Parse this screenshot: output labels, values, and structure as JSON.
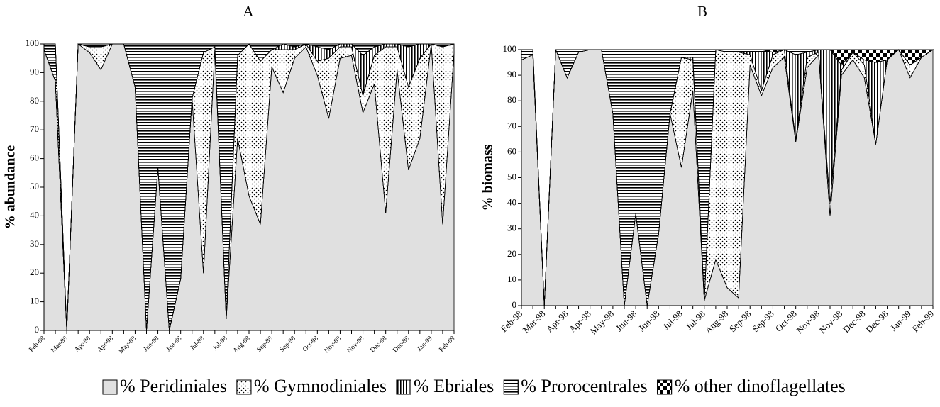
{
  "chart_data": [
    {
      "type": "area",
      "stacked": true,
      "title": "A",
      "ylabel": "% abundance",
      "categories": [
        "Feb-98",
        null,
        "Mar-98",
        null,
        "Apr-98",
        null,
        "Apr-98",
        null,
        "May-98",
        null,
        "Jun-98",
        null,
        "Jun-98",
        null,
        "Jul-98",
        null,
        "Jul-98",
        null,
        "Aug-98",
        null,
        "Sep-98",
        null,
        "Sep-98",
        null,
        "Oct-98",
        null,
        "Nov-98",
        null,
        "Nov-98",
        null,
        "Dec-98",
        null,
        "Dec-98",
        null,
        "Jan-99",
        null,
        "Feb-99"
      ],
      "ylim": [
        0,
        100
      ],
      "yticks": [
        0,
        10,
        20,
        30,
        40,
        50,
        60,
        70,
        80,
        90,
        100
      ],
      "grid": false,
      "series": [
        {
          "name": "% Peridiniales",
          "color": "#e0e0e0",
          "pattern": "solid",
          "values": [
            98,
            87,
            0,
            100,
            97,
            91,
            100,
            100,
            85,
            0,
            57,
            0,
            18,
            81,
            20,
            98,
            4,
            67,
            47,
            37,
            92,
            83,
            95,
            99,
            89,
            74,
            95,
            96,
            76,
            86,
            41,
            91,
            56,
            67,
            100,
            37,
            97
          ]
        },
        {
          "name": "% Gymnodiniales",
          "color": "#ffffff",
          "pattern": "dots",
          "values": [
            0,
            0,
            0,
            0,
            2,
            8,
            0,
            0,
            0,
            0,
            0,
            0,
            0,
            0,
            77,
            1,
            0,
            29,
            53,
            57,
            6,
            15,
            3,
            1,
            5,
            21,
            4,
            3,
            6,
            10,
            58,
            8,
            29,
            28,
            0,
            62,
            3
          ]
        },
        {
          "name": "% Ebriales",
          "color": "#ffffff",
          "pattern": "vertical",
          "values": [
            0,
            0,
            0,
            0,
            0,
            0,
            0,
            0,
            0,
            0,
            0,
            0,
            0,
            0,
            0,
            0,
            0,
            0,
            0,
            0,
            0,
            2,
            1,
            0,
            5,
            3,
            1,
            1,
            14,
            3,
            1,
            1,
            14,
            5,
            0,
            0,
            0
          ]
        },
        {
          "name": "% Prorocentrales",
          "color": "#ffffff",
          "pattern": "horizontal",
          "values": [
            2,
            13,
            0,
            0,
            1,
            1,
            0,
            0,
            15,
            100,
            43,
            100,
            82,
            19,
            3,
            1,
            96,
            4,
            0,
            6,
            2,
            0,
            1,
            0,
            1,
            2,
            0,
            0,
            4,
            1,
            0,
            0,
            1,
            0,
            0,
            1,
            0
          ]
        },
        {
          "name": "% other dinoflagellates",
          "color": "#ffffff",
          "pattern": "checker",
          "values": [
            0,
            0,
            0,
            0,
            0,
            0,
            0,
            0,
            0,
            0,
            0,
            0,
            0,
            0,
            0,
            0,
            0,
            0,
            0,
            0,
            0,
            0,
            0,
            0,
            0,
            0,
            0,
            0,
            0,
            0,
            0,
            0,
            0,
            0,
            0,
            0,
            0
          ]
        }
      ]
    },
    {
      "type": "area",
      "stacked": true,
      "title": "B",
      "ylabel": "% biomass",
      "categories": [
        "Feb-98",
        null,
        "Mar-98",
        null,
        "Apr-98",
        null,
        "Apr-98",
        null,
        "May-98",
        null,
        "Jun-98",
        null,
        "Jun-98",
        null,
        "Jul-98",
        null,
        "Jul-98",
        null,
        "Aug-98",
        null,
        "Sep-98",
        null,
        "Sep-98",
        null,
        "Oct-98",
        null,
        "Nov-98",
        null,
        "Nov-98",
        null,
        "Dec-98",
        null,
        "Dec-98",
        null,
        "Jan-99",
        null,
        "Feb-99"
      ],
      "ylim": [
        0,
        100
      ],
      "yticks": [
        0,
        10,
        20,
        30,
        40,
        50,
        60,
        70,
        80,
        90,
        100
      ],
      "grid": false,
      "series": [
        {
          "color": "#e0e0e0",
          "pattern": "solid",
          "values": [
            96,
            98,
            0,
            100,
            89,
            99,
            100,
            100,
            75,
            0,
            36,
            0,
            28,
            75,
            54,
            84,
            2,
            18,
            7,
            3,
            94,
            82,
            93,
            97,
            64,
            93,
            98,
            35,
            90,
            96,
            89,
            63,
            96,
            100,
            89,
            97,
            100
          ]
        },
        {
          "color": "#ffffff",
          "pattern": "dots",
          "values": [
            0,
            0,
            0,
            0,
            0,
            0,
            0,
            0,
            0,
            0,
            0,
            0,
            0,
            0,
            43,
            12,
            0,
            82,
            92,
            96,
            4,
            2,
            5,
            3,
            1,
            4,
            1,
            5,
            2,
            3,
            5,
            0,
            0,
            0,
            5,
            0,
            0
          ]
        },
        {
          "color": "#ffffff",
          "pattern": "vertical",
          "values": [
            0,
            0,
            0,
            0,
            0,
            0,
            0,
            0,
            0,
            0,
            0,
            0,
            0,
            0,
            0,
            1,
            0,
            0,
            0,
            0,
            1,
            15,
            1,
            0,
            33,
            2,
            1,
            60,
            2,
            0,
            2,
            32,
            0,
            0,
            0,
            0,
            0
          ]
        },
        {
          "color": "#ffffff",
          "pattern": "horizontal",
          "values": [
            4,
            2,
            0,
            0,
            11,
            1,
            0,
            0,
            25,
            100,
            64,
            100,
            72,
            25,
            3,
            3,
            98,
            0,
            1,
            1,
            1,
            1,
            0,
            0,
            2,
            1,
            0,
            0,
            0,
            0,
            0,
            0,
            0,
            0,
            0,
            0,
            0
          ]
        },
        {
          "color": "#ffffff",
          "pattern": "checker",
          "values": [
            0,
            0,
            0,
            0,
            0,
            0,
            0,
            0,
            0,
            0,
            0,
            0,
            0,
            0,
            0,
            0,
            0,
            0,
            0,
            0,
            0,
            0,
            1,
            0,
            0,
            0,
            0,
            0,
            6,
            1,
            4,
            5,
            4,
            0,
            6,
            3,
            0
          ]
        }
      ]
    }
  ]
}
